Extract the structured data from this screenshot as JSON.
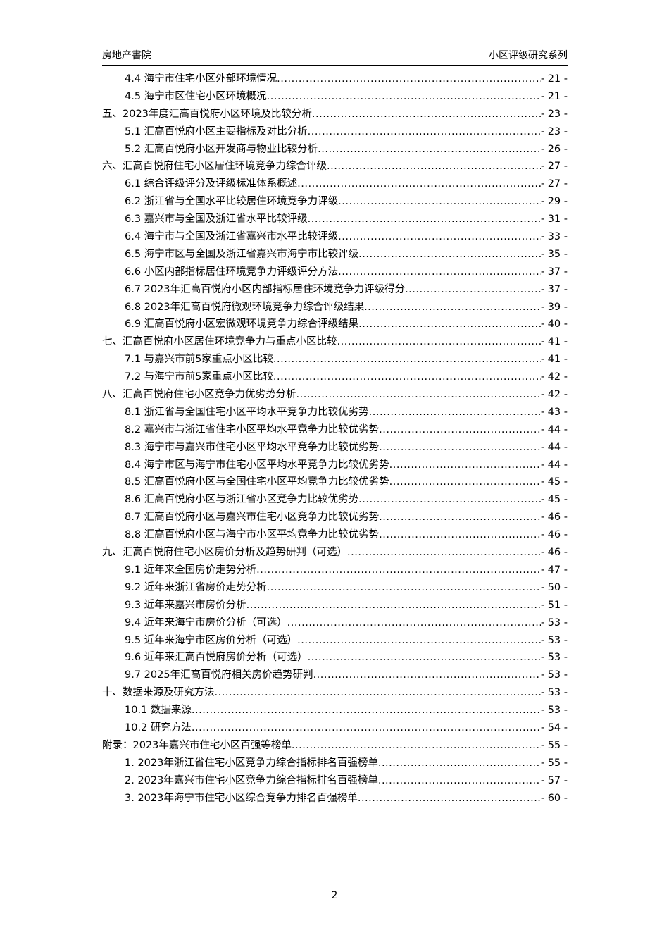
{
  "header": {
    "left": "房地产書院",
    "right": "小区评级研究系列"
  },
  "toc": [
    {
      "level": 2,
      "title": "4.4 海宁市住宅小区外部环境情况",
      "page": "- 21 -"
    },
    {
      "level": 2,
      "title": "4.5 海宁市区住宅小区环境概况",
      "page": "- 21 -"
    },
    {
      "level": 1,
      "title": "五、2023年度汇高百悦府小区环境及比较分析",
      "page": "- 23 -"
    },
    {
      "level": 2,
      "title": "5.1 汇高百悦府小区主要指标及对比分析",
      "page": "- 23 -"
    },
    {
      "level": 2,
      "title": "5.2 汇高百悦府小区开发商与物业比较分析",
      "page": "- 26 -"
    },
    {
      "level": 1,
      "title": "六、汇高百悦府住宅小区居住环境竞争力综合评级",
      "page": "- 27 -"
    },
    {
      "level": 2,
      "title": "6.1 综合评级评分及评级标准体系概述",
      "page": "- 27 -"
    },
    {
      "level": 2,
      "title": "6.2 浙江省与全国水平比较居住环境竞争力评级",
      "page": "- 29 -"
    },
    {
      "level": 2,
      "title": "6.3 嘉兴市与全国及浙江省水平比较评级",
      "page": "- 31 -"
    },
    {
      "level": 2,
      "title": "6.4 海宁市与全国及浙江省嘉兴市水平比较评级",
      "page": "- 33 -"
    },
    {
      "level": 2,
      "title": "6.5 海宁市区与全国及浙江省嘉兴市海宁市比较评级",
      "page": "- 35 -"
    },
    {
      "level": 2,
      "title": "6.6 小区内部指标居住环境竞争力评级评分方法",
      "page": "- 37 -"
    },
    {
      "level": 2,
      "title": "6.7 2023年汇高百悦府小区内部指标居住环境竞争力评级得分",
      "page": "- 37 -"
    },
    {
      "level": 2,
      "title": "6.8 2023年汇高百悦府微观环境竞争力综合评级结果",
      "page": "- 39 -"
    },
    {
      "level": 2,
      "title": "6.9 汇高百悦府小区宏微观环境竞争力综合评级结果",
      "page": "- 40 -"
    },
    {
      "level": 1,
      "title": "七、汇高百悦府小区居住环境竞争力与重点小区比较",
      "page": "- 41 -"
    },
    {
      "level": 2,
      "title": "7.1 与嘉兴市前5家重点小区比较",
      "page": "- 41 -"
    },
    {
      "level": 2,
      "title": "7.2 与海宁市前5家重点小区比较",
      "page": "- 42 -"
    },
    {
      "level": 1,
      "title": "八、汇高百悦府住宅小区竞争力优劣势分析",
      "page": "- 42 -"
    },
    {
      "level": 2,
      "title": "8.1 浙江省与全国住宅小区平均水平竞争力比较优劣势",
      "page": "- 43 -"
    },
    {
      "level": 2,
      "title": "8.2 嘉兴市与浙江省住宅小区平均水平竞争力比较优劣势",
      "page": "- 44 -"
    },
    {
      "level": 2,
      "title": "8.3 海宁市与嘉兴市住宅小区平均水平竞争力比较优劣势",
      "page": "- 44 -"
    },
    {
      "level": 2,
      "title": "8.4 海宁市区与海宁市住宅小区平均水平竞争力比较优劣势",
      "page": "- 44 -"
    },
    {
      "level": 2,
      "title": "8.5 汇高百悦府小区与全国住宅小区平均竞争力比较优劣势",
      "page": "- 45 -"
    },
    {
      "level": 2,
      "title": "8.6 汇高百悦府小区与浙江省小区竞争力比较优劣势",
      "page": "- 45 -"
    },
    {
      "level": 2,
      "title": "8.7 汇高百悦府小区与嘉兴市住宅小区竞争力比较优劣势",
      "page": "- 46 -"
    },
    {
      "level": 2,
      "title": "8.8 汇高百悦府小区与海宁市小区平均竞争力比较优劣势",
      "page": "- 46 -"
    },
    {
      "level": 1,
      "title": "九、汇高百悦府住宅小区房价分析及趋势研判（可选）",
      "page": "- 46 -"
    },
    {
      "level": 2,
      "title": "9.1 近年来全国房价走势分析",
      "page": "- 47 -"
    },
    {
      "level": 2,
      "title": "9.2 近年来浙江省房价走势分析",
      "page": "- 50 -"
    },
    {
      "level": 2,
      "title": "9.3 近年来嘉兴市房价分析",
      "page": "- 51 -"
    },
    {
      "level": 2,
      "title": "9.4 近年来海宁市房价分析（可选）",
      "page": "- 53 -"
    },
    {
      "level": 2,
      "title": "9.5 近年来海宁市区房价分析（可选）",
      "page": "- 53 -"
    },
    {
      "level": 2,
      "title": "9.6 近年来汇高百悦府房价分析（可选）",
      "page": "- 53 -"
    },
    {
      "level": 2,
      "title": "9.7 2025年汇高百悦府相关房价趋势研判",
      "page": "- 53 -"
    },
    {
      "level": 1,
      "title": "十、数据来源及研究方法",
      "page": "- 53 -"
    },
    {
      "level": 2,
      "title": "10.1 数据来源",
      "page": "- 53 -"
    },
    {
      "level": 2,
      "title": "10.2 研究方法",
      "page": "- 54 -"
    },
    {
      "level": 1,
      "title": "附录：2023年嘉兴市住宅小区百强等榜单",
      "page": "- 55 -"
    },
    {
      "level": 2,
      "title": "1. 2023年浙江省住宅小区竞争力综合指标排名百强榜单",
      "page": "- 55 -"
    },
    {
      "level": 2,
      "title": "2. 2023年嘉兴市住宅小区竞争力综合指标排名百强榜单",
      "page": "- 57 -"
    },
    {
      "level": 2,
      "title": "3. 2023年海宁市住宅小区综合竞争力排名百强榜单",
      "page": "- 60 -"
    }
  ],
  "footer": {
    "page_number": "2"
  }
}
